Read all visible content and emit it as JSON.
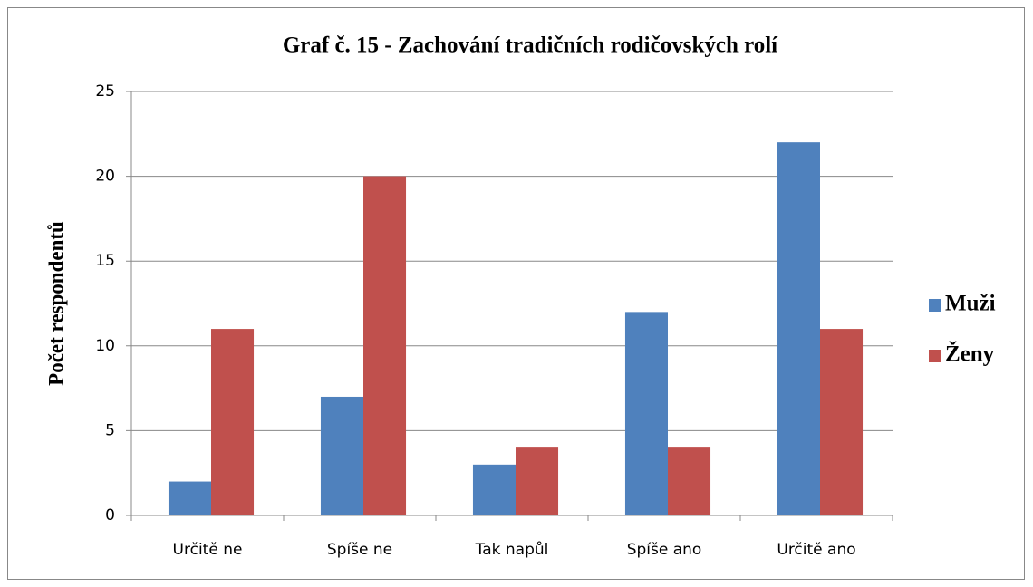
{
  "chart_data": {
    "type": "bar",
    "title": "Graf č. 15 - Zachování tradičních rodičovských rolí",
    "y_label": "Počet respondentů",
    "categories": [
      "Určitě ne",
      "Spíše ne",
      "Tak napůl",
      "Spíše ano",
      "Určitě ano"
    ],
    "series": [
      {
        "name": "Muži",
        "color": "#4f81bd",
        "values": [
          2,
          7,
          3,
          12,
          22
        ]
      },
      {
        "name": "Ženy",
        "color": "#c0504d",
        "values": [
          11,
          20,
          4,
          4,
          11
        ]
      }
    ],
    "ylim": [
      0,
      25
    ],
    "yticks": [
      0,
      5,
      10,
      15,
      20,
      25
    ],
    "grid": true,
    "legend": "right"
  }
}
